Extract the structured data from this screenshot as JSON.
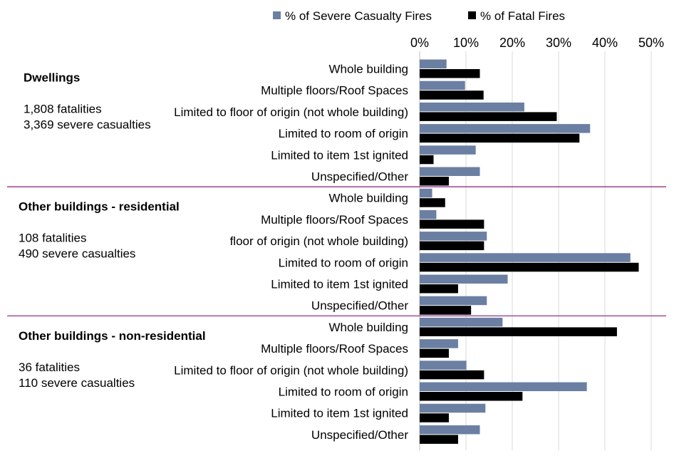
{
  "chart_data": {
    "type": "bar",
    "orientation": "horizontal",
    "title": "",
    "xlabel": "",
    "ylabel": "",
    "xlim": [
      0,
      50
    ],
    "x_ticks": [
      "0%",
      "10%",
      "20%",
      "30%",
      "40%",
      "50%"
    ],
    "grid": true,
    "legend_position": "top",
    "colors": {
      "severe": "#6B7FA3",
      "fatal": "#000000",
      "separator": "#8B1A7A",
      "grid": "#D9D9D9"
    },
    "series": [
      {
        "key": "severe",
        "name": "% of Severe Casualty Fires"
      },
      {
        "key": "fatal",
        "name": "% of Fatal Fires"
      }
    ],
    "groups": [
      {
        "title": "Dwellings",
        "stats": [
          "1,808 fatalities",
          "3,369 severe casualties"
        ],
        "categories": [
          {
            "label": "Whole building",
            "severe": 5.8,
            "fatal": 13.0
          },
          {
            "label": "Multiple floors/Roof Spaces",
            "severe": 9.8,
            "fatal": 13.8
          },
          {
            "label": "Limited to floor of origin (not whole building)",
            "severe": 22.6,
            "fatal": 29.6
          },
          {
            "label": "Limited to room of origin",
            "severe": 36.8,
            "fatal": 34.5
          },
          {
            "label": "Limited to item 1st ignited",
            "severe": 12.1,
            "fatal": 3.0
          },
          {
            "label": "Unspecified/Other",
            "severe": 13.0,
            "fatal": 6.3
          }
        ]
      },
      {
        "title": "Other buildings - residential",
        "stats": [
          "108 fatalities",
          "490 severe casualties"
        ],
        "categories": [
          {
            "label": "Whole building",
            "severe": 2.7,
            "fatal": 5.5
          },
          {
            "label": "Multiple floors/Roof Spaces",
            "severe": 3.6,
            "fatal": 13.9
          },
          {
            "label": "floor of origin (not whole building)",
            "severe": 14.5,
            "fatal": 13.9
          },
          {
            "label": "Limited to room of origin",
            "severe": 45.5,
            "fatal": 47.3
          },
          {
            "label": "Limited to item 1st ignited",
            "severe": 19.0,
            "fatal": 8.3
          },
          {
            "label": "Unspecified/Other",
            "severe": 14.5,
            "fatal": 11.1
          }
        ]
      },
      {
        "title": "Other buildings - non-residential",
        "stats": [
          "36 fatalities",
          "110 severe casualties"
        ],
        "categories": [
          {
            "label": "Whole building",
            "severe": 17.9,
            "fatal": 42.6
          },
          {
            "label": "Multiple floors/Roof Spaces",
            "severe": 8.3,
            "fatal": 6.3
          },
          {
            "label": "Limited to floor of origin (not whole building)",
            "severe": 10.1,
            "fatal": 13.9
          },
          {
            "label": "Limited to room of origin",
            "severe": 36.1,
            "fatal": 22.2
          },
          {
            "label": "Limited to item 1st ignited",
            "severe": 14.2,
            "fatal": 6.3
          },
          {
            "label": "Unspecified/Other",
            "severe": 13.0,
            "fatal": 8.3
          }
        ]
      }
    ]
  }
}
